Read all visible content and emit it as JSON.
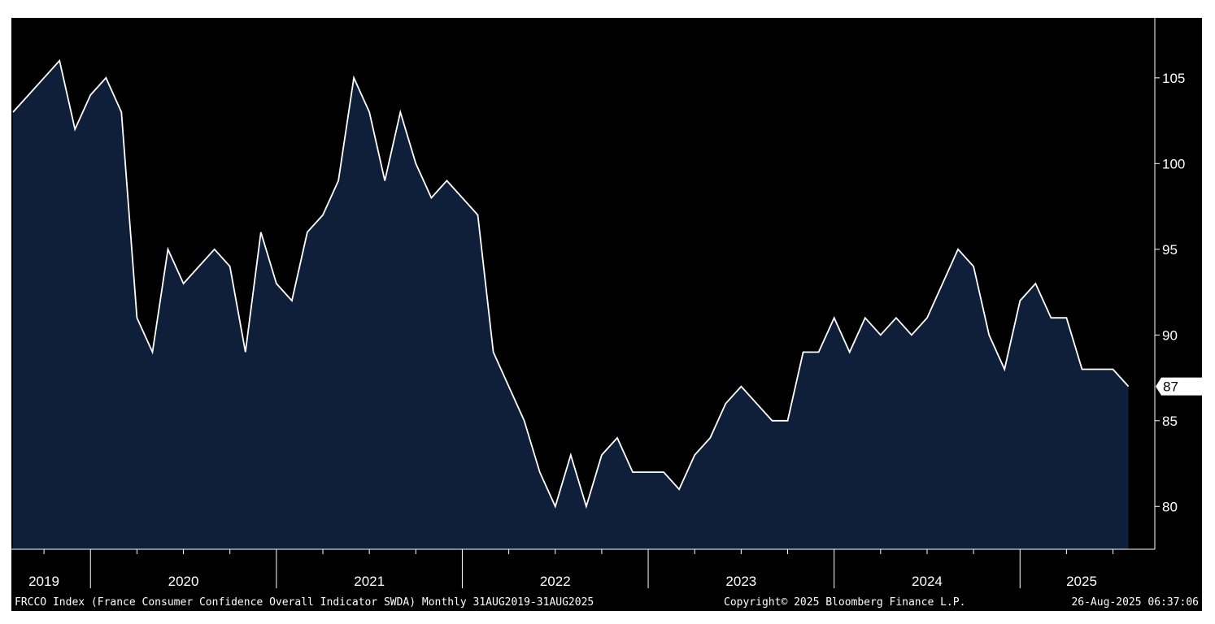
{
  "chart_data": {
    "type": "area",
    "title": "",
    "xlabel": "",
    "ylabel": "",
    "ylim": [
      77.5,
      108.5
    ],
    "yticks": [
      80,
      85,
      90,
      95,
      100,
      105
    ],
    "x_start": "Aug-2019",
    "x_end": "Aug-2025",
    "year_labels": [
      "2019",
      "2020",
      "2021",
      "2022",
      "2023",
      "2024",
      "2025"
    ],
    "series": [
      {
        "values": [
          103,
          104,
          105,
          106,
          102,
          104,
          105,
          103,
          91,
          89,
          95,
          93,
          94,
          95,
          94,
          89,
          96,
          93,
          92,
          96,
          97,
          99,
          105,
          103,
          99,
          103,
          100,
          98,
          99,
          98,
          97,
          89,
          87,
          85,
          82,
          80,
          83,
          80,
          83,
          84,
          82,
          82,
          82,
          81,
          83,
          84,
          86,
          87,
          86,
          85,
          85,
          89,
          89,
          91,
          89,
          91,
          90,
          91,
          90,
          91,
          93,
          95,
          94,
          90,
          88,
          92,
          93,
          91,
          91,
          88,
          88,
          88,
          87
        ]
      }
    ],
    "last_value": "87",
    "colors": {
      "background": "#000000",
      "area_fill": "#0f1f3a",
      "line": "#ffffff"
    },
    "grid": false
  },
  "footer": {
    "description": "FRCCO Index (France Consumer Confidence Overall Indicator SWDA) Monthly 31AUG2019-31AUG2025",
    "copyright": "Copyright© 2025 Bloomberg Finance L.P.",
    "timestamp": "26-Aug-2025 06:37:06"
  }
}
